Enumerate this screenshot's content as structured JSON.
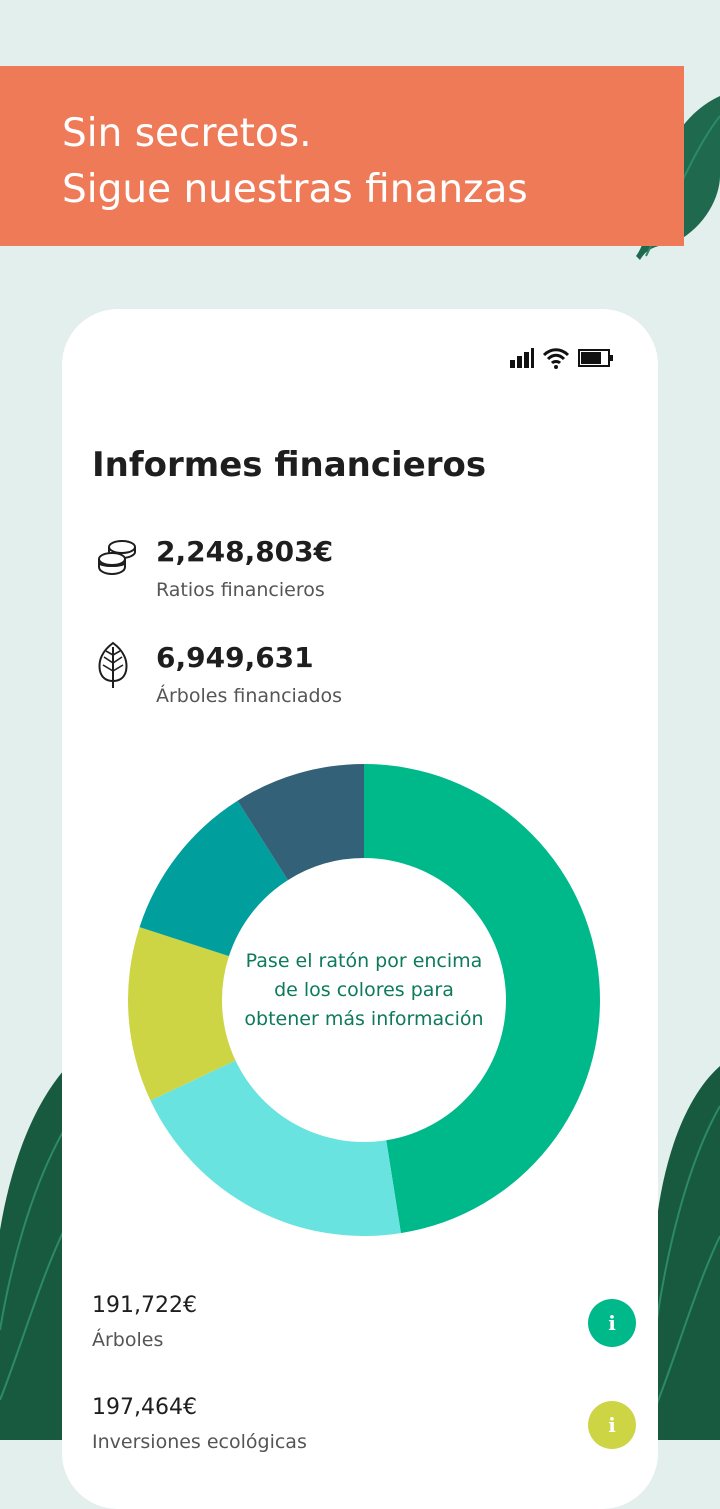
{
  "banner": {
    "line1": "Sin secretos.",
    "line2": "Sigue nuestras finanzas"
  },
  "status_icons": [
    "signal-icon",
    "wifi-icon",
    "battery-icon"
  ],
  "report": {
    "title": "Informes financieros",
    "stats": [
      {
        "icon": "coins-icon",
        "value": "2,248,803€",
        "label": "Ratios financieros"
      },
      {
        "icon": "leaf-icon",
        "value": "6,949,631",
        "label": "Árboles financiados"
      }
    ]
  },
  "chart_data": {
    "type": "pie",
    "hint": "Pase el ratón por encima de los colores para obtener más información",
    "slices": [
      {
        "value": 47.5,
        "color": "#00b98a"
      },
      {
        "value": 20.5,
        "color": "#68e3e0"
      },
      {
        "value": 12.0,
        "color": "#cdd545"
      },
      {
        "value": 11.0,
        "color": "#019e9e"
      },
      {
        "value": 9.0,
        "color": "#336177"
      }
    ]
  },
  "legend": [
    {
      "value": "191,722€",
      "label": "Árboles",
      "info": "i",
      "color": "#00b98a"
    },
    {
      "value": "197,464€",
      "label": "Inversiones ecológicas",
      "info": "i",
      "color": "#cdd545"
    }
  ],
  "colors": {
    "background": "#e3efec",
    "banner": "#ef7a58",
    "leaf": "#1f6a4e"
  }
}
